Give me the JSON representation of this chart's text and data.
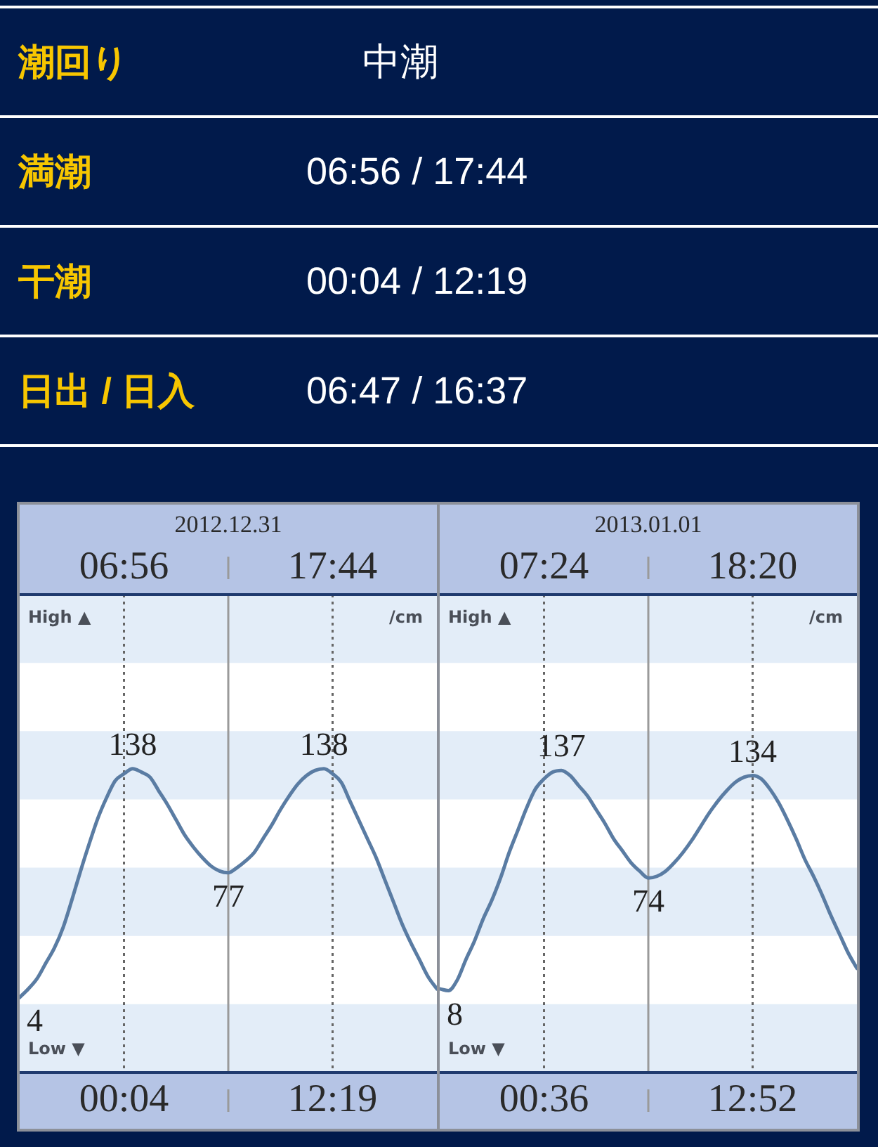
{
  "chart_data": [
    {
      "type": "other",
      "annotations": [
        "潮回り",
        "中潮",
        "満潮",
        "06:56 / 17:44",
        "干潮",
        "00:04 / 12:19",
        "日出 / 日入",
        "06:47 / 16:37"
      ]
    },
    {
      "type": "line",
      "title": "2012.12.31",
      "ylabel": "/cm",
      "annotations": [
        "High ▲",
        "Low ▼",
        "06:56",
        "17:44",
        "00:04",
        "12:19"
      ],
      "categories": [
        null,
        null,
        null,
        null,
        null,
        null,
        null,
        null,
        null,
        null,
        null,
        null,
        null,
        null,
        null,
        null,
        null,
        null,
        null,
        null,
        null,
        null,
        null,
        null,
        null,
        null,
        null,
        null,
        null,
        null,
        null,
        null,
        null,
        null,
        null,
        null,
        null,
        null,
        null,
        null,
        null,
        null,
        null,
        null,
        null,
        null,
        null,
        null,
        null
      ],
      "values": [
        4,
        9,
        15,
        24,
        33,
        45,
        61,
        78,
        94,
        109,
        121,
        131,
        135,
        138,
        136,
        133,
        125,
        117,
        108,
        99,
        92,
        86,
        81,
        78,
        77,
        80,
        84,
        89,
        97,
        105,
        114,
        122,
        129,
        134,
        137,
        138,
        135,
        130,
        119,
        108,
        97,
        86,
        73,
        60,
        47,
        36,
        26,
        16,
        9
      ],
      "value_labels": [
        "4",
        null,
        null,
        null,
        null,
        null,
        null,
        null,
        null,
        null,
        null,
        null,
        null,
        "138",
        null,
        null,
        null,
        null,
        null,
        null,
        null,
        null,
        null,
        null,
        "77",
        null,
        null,
        null,
        null,
        null,
        null,
        null,
        null,
        null,
        null,
        "138",
        null,
        null,
        null,
        null,
        null,
        null,
        null,
        null,
        null,
        null,
        null,
        null,
        null
      ],
      "color": "#5a7ca3",
      "ylim": [
        -40,
        240
      ],
      "bands": [
        {
          "axis": "y",
          "from": -40,
          "to": 0,
          "color": "#e3edf8"
        },
        {
          "axis": "y",
          "from": 40,
          "to": 80,
          "color": "#e3edf8"
        },
        {
          "axis": "y",
          "from": 120,
          "to": 160,
          "color": "#e3edf8"
        },
        {
          "axis": "y",
          "from": 200,
          "to": 240,
          "color": "#e3edf8"
        }
      ]
    },
    {
      "type": "line",
      "title": "2013.01.01",
      "ylabel": "/cm",
      "annotations": [
        "High ▲",
        "Low ▼",
        "07:24",
        "18:20",
        "00:36",
        "12:52"
      ],
      "categories": [
        null,
        null,
        null,
        null,
        null,
        null,
        null,
        null,
        null,
        null,
        null,
        null,
        null,
        null,
        null,
        null,
        null,
        null,
        null,
        null,
        null,
        null,
        null,
        null,
        null,
        null,
        null,
        null,
        null,
        null,
        null,
        null,
        null,
        null,
        null,
        null,
        null,
        null,
        null,
        null,
        null,
        null,
        null,
        null,
        null,
        null,
        null,
        null,
        null
      ],
      "values": [
        9,
        8,
        14,
        26,
        37,
        50,
        61,
        74,
        89,
        102,
        115,
        126,
        132,
        136,
        137,
        134,
        128,
        122,
        114,
        106,
        97,
        90,
        83,
        78,
        74,
        75,
        78,
        83,
        89,
        96,
        104,
        112,
        119,
        125,
        130,
        133,
        134,
        132,
        126,
        118,
        108,
        97,
        85,
        75,
        64,
        52,
        41,
        30,
        21
      ],
      "value_labels": [
        null,
        "8",
        null,
        null,
        null,
        null,
        null,
        null,
        null,
        null,
        null,
        null,
        null,
        null,
        "137",
        null,
        null,
        null,
        null,
        null,
        null,
        null,
        null,
        null,
        "74",
        null,
        null,
        null,
        null,
        null,
        null,
        null,
        null,
        null,
        null,
        null,
        "134",
        null,
        null,
        null,
        null,
        null,
        null,
        null,
        null,
        null,
        null,
        null,
        null
      ],
      "color": "#5a7ca3",
      "ylim": [
        -40,
        240
      ],
      "bands": [
        {
          "axis": "y",
          "from": -40,
          "to": 0,
          "color": "#e3edf8"
        },
        {
          "axis": "y",
          "from": 40,
          "to": 80,
          "color": "#e3edf8"
        },
        {
          "axis": "y",
          "from": 120,
          "to": 160,
          "color": "#e3edf8"
        },
        {
          "axis": "y",
          "from": 200,
          "to": 240,
          "color": "#e3edf8"
        }
      ]
    }
  ]
}
